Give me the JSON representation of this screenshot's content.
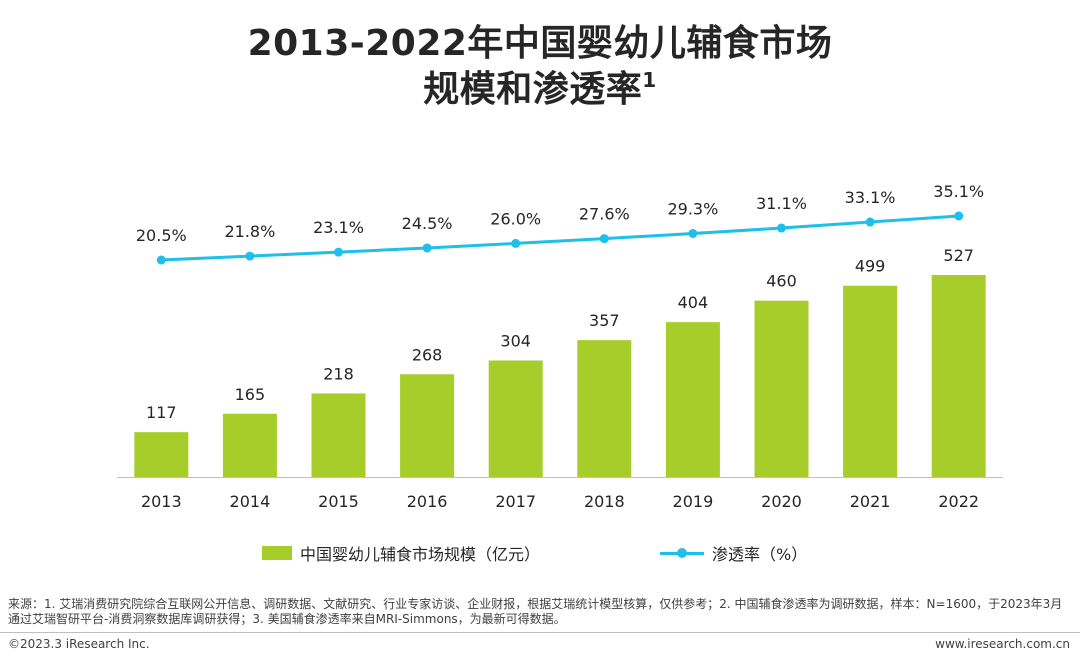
{
  "title": {
    "line1": "2013-2022年中国婴幼儿辅食市场",
    "line2": "规模和渗透率",
    "superscript": "1"
  },
  "chart_data": {
    "type": "bar",
    "categories": [
      "2013",
      "2014",
      "2015",
      "2016",
      "2017",
      "2018",
      "2019",
      "2020",
      "2021",
      "2022"
    ],
    "series": [
      {
        "name": "中国婴幼儿辅食市场规模（亿元）",
        "type": "bar",
        "values": [
          117,
          165,
          218,
          268,
          304,
          357,
          404,
          460,
          499,
          527
        ],
        "labels": [
          "117",
          "165",
          "218",
          "268",
          "304",
          "357",
          "404",
          "460",
          "499",
          "527"
        ],
        "color": "#a6cd2a"
      },
      {
        "name": "渗透率（%）",
        "type": "line",
        "values": [
          20.5,
          21.8,
          23.1,
          24.5,
          26.0,
          27.6,
          29.3,
          31.1,
          33.1,
          35.1
        ],
        "labels": [
          "20.5%",
          "21.8%",
          "23.1%",
          "24.5%",
          "26.0%",
          "27.6%",
          "29.3%",
          "31.1%",
          "33.1%",
          "35.1%"
        ],
        "color": "#1fbfec"
      }
    ],
    "bar_ylim": [
      0,
      570
    ],
    "line_ylim": [
      0,
      100
    ],
    "grid": false,
    "legend_position": "bottom"
  },
  "legend": {
    "bar_label": "中国婴幼儿辅食市场规模（亿元）",
    "line_label": "渗透率（%）"
  },
  "footer": {
    "source": "来源：1. 艾瑞消费研究院综合互联网公开信息、调研数据、文献研究、行业专家访谈、企业财报，根据艾瑞统计模型核算，仅供参考；2. 中国辅食渗透率为调研数据，样本：N=1600，于2023年3月通过艾瑞智研平台-消费洞察数据库调研获得；3. 美国辅食渗透率来自MRI-Simmons，为最新可得数据。",
    "copyright": "©2023.3 iResearch Inc.",
    "website": "www.iresearch.com.cn"
  },
  "colors": {
    "bar": "#a6cd2a",
    "line": "#1fbfec",
    "axis": "#bfbfbf",
    "text": "#262626"
  }
}
